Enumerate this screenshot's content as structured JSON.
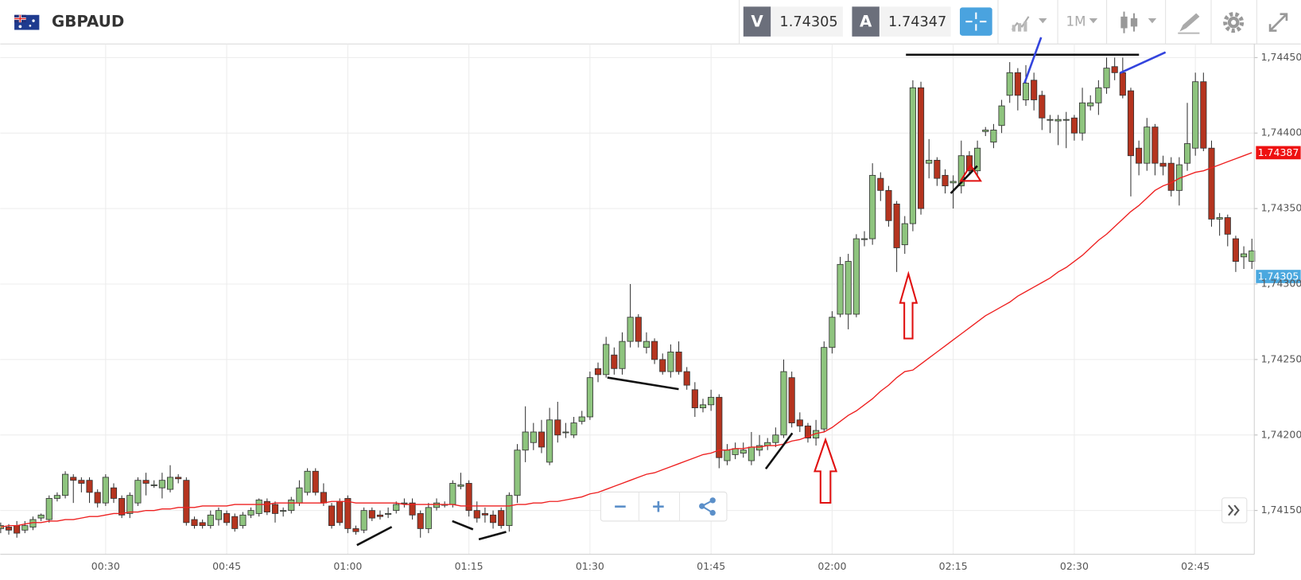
{
  "header": {
    "symbol": "GBPAUD",
    "bid": {
      "label": "V",
      "value": "1.74305"
    },
    "ask": {
      "label": "A",
      "value": "1.74347"
    },
    "timeframe": "1M"
  },
  "chart_data": {
    "type": "candlestick",
    "categories": [
      null,
      null,
      null,
      null,
      null,
      null,
      null,
      null,
      null,
      null,
      null,
      null,
      null,
      "00:30",
      null,
      null,
      null,
      null,
      null,
      null,
      null,
      null,
      null,
      null,
      null,
      null,
      null,
      null,
      "00:45",
      null,
      null,
      null,
      null,
      null,
      null,
      null,
      null,
      null,
      null,
      null,
      null,
      null,
      null,
      "01:00",
      null,
      null,
      null,
      null,
      null,
      null,
      null,
      null,
      null,
      null,
      null,
      null,
      null,
      null,
      "01:15",
      null,
      null,
      null,
      null,
      null,
      null,
      null,
      null,
      null,
      null,
      null,
      null,
      null,
      null,
      "01:30",
      null,
      null,
      null,
      null,
      null,
      null,
      null,
      null,
      null,
      null,
      null,
      null,
      null,
      null,
      "01:45",
      null,
      null,
      null,
      null,
      null,
      null,
      null,
      null,
      null,
      null,
      null,
      null,
      null,
      null,
      "02:00",
      null,
      null,
      null,
      null,
      null,
      null,
      null,
      null,
      null,
      null,
      null,
      null,
      null,
      null,
      "02:15",
      null,
      null,
      null,
      null,
      null,
      null,
      null,
      null,
      null,
      null,
      null,
      null,
      null,
      null,
      "02:30",
      null,
      null,
      null,
      null,
      null,
      null,
      null,
      null,
      null,
      null,
      null,
      null,
      null,
      null,
      "02:45",
      null,
      null,
      null,
      null,
      null,
      null,
      null
    ],
    "open": [
      1.74138,
      1.74139,
      1.7414,
      1.74137,
      1.74139,
      1.74145,
      1.74144,
      1.74158,
      1.7416,
      1.74172,
      1.7417,
      1.7417,
      1.74162,
      1.74155,
      1.74165,
      1.74158,
      1.74148,
      1.74155,
      1.7417,
      1.74167,
      1.74165,
      1.74164,
      1.74172,
      1.7417,
      1.74144,
      1.74142,
      1.7414,
      1.74144,
      1.74148,
      1.74146,
      1.7414,
      1.74147,
      1.74148,
      1.74156,
      1.74154,
      1.7415,
      1.7415,
      1.74155,
      1.74162,
      1.74176,
      1.74162,
      1.74153,
      1.74156,
      1.74158,
      1.74138,
      1.74137,
      1.7415,
      1.74147,
      1.74148,
      1.7415,
      1.74155,
      1.74155,
      1.74148,
      1.74138,
      1.74152,
      1.74154,
      1.74154,
      1.74166,
      1.74168,
      1.7415,
      1.74148,
      1.74147,
      1.7415,
      1.7414,
      1.7416,
      1.7419,
      1.74195,
      1.74202,
      1.74182,
      1.7421,
      1.74202,
      1.742,
      1.74209,
      1.74212,
      1.74244,
      1.7424,
      1.74253,
      1.74244,
      1.74262,
      1.74278,
      1.74258,
      1.74262,
      1.7425,
      1.74242,
      1.74255,
      1.74242,
      1.7423,
      1.74218,
      1.7422,
      1.74225,
      1.74183,
      1.74187,
      1.74188,
      1.74183,
      1.7419,
      1.74193,
      1.74195,
      1.742,
      1.74238,
      1.7421,
      1.74206,
      1.74198,
      1.74204,
      1.74258,
      1.7428,
      1.7428,
      1.7428,
      1.7433,
      1.7433,
      1.7437,
      1.74362,
      1.74353,
      1.74326,
      1.7434,
      1.7443,
      1.7438,
      1.74382,
      1.74372,
      1.74367,
      1.74365,
      1.74385,
      1.74375,
      1.74401,
      1.74394,
      1.74405,
      1.74425,
      1.7444,
      1.74422,
      1.74435,
      1.74425,
      1.74409,
      1.74408,
      1.74409,
      1.7441,
      1.744,
      1.74418,
      1.7442,
      1.7443,
      1.74444,
      1.7444,
      1.74428,
      1.7439,
      1.7438,
      1.74404,
      1.7438,
      1.7438,
      1.74362,
      1.7438,
      1.7439,
      1.74434,
      1.7439,
      1.74343,
      1.74344,
      1.7433,
      1.74318,
      1.74315
    ],
    "high": [
      1.74142,
      1.74141,
      1.74143,
      1.74143,
      1.74146,
      1.74148,
      1.7416,
      1.74162,
      1.74176,
      1.74174,
      1.74172,
      1.74172,
      1.74164,
      1.74174,
      1.74168,
      1.7416,
      1.74162,
      1.74172,
      1.74175,
      1.7417,
      1.74175,
      1.7418,
      1.74174,
      1.74172,
      1.74146,
      1.74144,
      1.7415,
      1.74152,
      1.7415,
      1.74148,
      1.74149,
      1.74152,
      1.74158,
      1.74158,
      1.74156,
      1.74152,
      1.74159,
      1.7417,
      1.74178,
      1.74178,
      1.74168,
      1.74155,
      1.74158,
      1.7416,
      1.7414,
      1.74152,
      1.74152,
      1.7415,
      1.74152,
      1.74156,
      1.74158,
      1.74158,
      1.7415,
      1.74155,
      1.74158,
      1.74156,
      1.7417,
      1.74175,
      1.7417,
      1.74156,
      1.74152,
      1.7415,
      1.74152,
      1.74162,
      1.74194,
      1.74219,
      1.74208,
      1.7421,
      1.74218,
      1.74222,
      1.74208,
      1.74212,
      1.74216,
      1.74242,
      1.74248,
      1.74265,
      1.74258,
      1.74268,
      1.743,
      1.7428,
      1.74268,
      1.74264,
      1.74254,
      1.7426,
      1.74262,
      1.74245,
      1.74235,
      1.74224,
      1.7423,
      1.74227,
      1.74194,
      1.74195,
      1.74195,
      1.74202,
      1.742,
      1.74198,
      1.74205,
      1.7425,
      1.74242,
      1.74215,
      1.74208,
      1.7421,
      1.74262,
      1.74282,
      1.74318,
      1.7432,
      1.74333,
      1.74335,
      1.7438,
      1.74374,
      1.74365,
      1.74355,
      1.74345,
      1.74435,
      1.74434,
      1.74396,
      1.74384,
      1.74376,
      1.74372,
      1.74395,
      1.74388,
      1.74395,
      1.74404,
      1.74406,
      1.74422,
      1.74447,
      1.74443,
      1.74445,
      1.7444,
      1.74428,
      1.74412,
      1.74412,
      1.74414,
      1.74412,
      1.7443,
      1.74425,
      1.74435,
      1.7445,
      1.7445,
      1.7445,
      1.7443,
      1.74395,
      1.7441,
      1.74406,
      1.74385,
      1.74384,
      1.74384,
      1.7442,
      1.7444,
      1.7444,
      1.74395,
      1.74347,
      1.74346,
      1.74332,
      1.74325,
      1.7433
    ],
    "low": [
      1.74135,
      1.74134,
      1.74132,
      1.74135,
      1.74137,
      1.74143,
      1.74142,
      1.74156,
      1.74158,
      1.74155,
      1.74162,
      1.74155,
      1.74152,
      1.74153,
      1.74155,
      1.74145,
      1.74145,
      1.74153,
      1.7416,
      1.74165,
      1.74158,
      1.74162,
      1.74168,
      1.7414,
      1.74138,
      1.74138,
      1.74138,
      1.7414,
      1.7414,
      1.74136,
      1.74138,
      1.74145,
      1.74146,
      1.74147,
      1.74142,
      1.74146,
      1.74148,
      1.74153,
      1.7416,
      1.7416,
      1.74153,
      1.74138,
      1.7414,
      1.74135,
      1.74134,
      1.74135,
      1.74143,
      1.74144,
      1.74145,
      1.74148,
      1.74152,
      1.74144,
      1.74132,
      1.74135,
      1.7415,
      1.74152,
      1.74152,
      1.74164,
      1.74146,
      1.74142,
      1.74142,
      1.74138,
      1.74138,
      1.74136,
      1.74155,
      1.74182,
      1.7419,
      1.74188,
      1.7418,
      1.74195,
      1.74198,
      1.74198,
      1.74207,
      1.7421,
      1.74235,
      1.74238,
      1.7424,
      1.7424,
      1.74258,
      1.74258,
      1.74254,
      1.74247,
      1.7424,
      1.74238,
      1.7424,
      1.7423,
      1.74212,
      1.74215,
      1.74216,
      1.74178,
      1.7418,
      1.74184,
      1.74185,
      1.7418,
      1.74186,
      1.7419,
      1.74192,
      1.74198,
      1.74205,
      1.74202,
      1.74195,
      1.74193,
      1.74202,
      1.74254,
      1.74278,
      1.7427,
      1.74278,
      1.74325,
      1.74326,
      1.74355,
      1.74338,
      1.74308,
      1.7432,
      1.74335,
      1.74346,
      1.7437,
      1.74365,
      1.7436,
      1.7435,
      1.7436,
      1.74372,
      1.74372,
      1.74398,
      1.7439,
      1.744,
      1.7442,
      1.74415,
      1.74418,
      1.74415,
      1.74402,
      1.744,
      1.74392,
      1.7439,
      1.74395,
      1.74395,
      1.74415,
      1.74412,
      1.74426,
      1.74435,
      1.74423,
      1.74358,
      1.74372,
      1.74375,
      1.74372,
      1.74372,
      1.74358,
      1.74352,
      1.74375,
      1.74385,
      1.74388,
      1.74338,
      1.74332,
      1.74325,
      1.74308,
      1.7431,
      1.7431
    ],
    "close": [
      1.7414,
      1.74137,
      1.74135,
      1.7414,
      1.74144,
      1.74147,
      1.74158,
      1.7416,
      1.74174,
      1.7417,
      1.74168,
      1.74162,
      1.74155,
      1.74172,
      1.74158,
      1.74147,
      1.7416,
      1.7417,
      1.74168,
      1.74167,
      1.7417,
      1.74172,
      1.74171,
      1.74142,
      1.7414,
      1.7414,
      1.74147,
      1.7415,
      1.74142,
      1.74138,
      1.74147,
      1.7415,
      1.74157,
      1.74149,
      1.74148,
      1.7415,
      1.74157,
      1.74165,
      1.74176,
      1.74162,
      1.74155,
      1.7414,
      1.74142,
      1.74138,
      1.74136,
      1.7415,
      1.74145,
      1.74146,
      1.74148,
      1.74154,
      1.74155,
      1.74147,
      1.74138,
      1.74152,
      1.74155,
      1.74154,
      1.74168,
      1.74167,
      1.7415,
      1.74145,
      1.74147,
      1.74142,
      1.7414,
      1.7416,
      1.7419,
      1.74202,
      1.74202,
      1.74192,
      1.7421,
      1.742,
      1.74202,
      1.74208,
      1.74212,
      1.74238,
      1.7424,
      1.7426,
      1.74244,
      1.74262,
      1.74278,
      1.74262,
      1.74262,
      1.7425,
      1.74242,
      1.74255,
      1.74242,
      1.74233,
      1.74218,
      1.7422,
      1.74225,
      1.74185,
      1.7419,
      1.74191,
      1.7419,
      1.74192,
      1.74193,
      1.74195,
      1.742,
      1.74242,
      1.74208,
      1.74206,
      1.74198,
      1.74203,
      1.74258,
      1.74278,
      1.74313,
      1.74315,
      1.7433,
      1.7433,
      1.74372,
      1.74362,
      1.74342,
      1.74324,
      1.7434,
      1.7443,
      1.7435,
      1.74382,
      1.7437,
      1.74365,
      1.74368,
      1.74385,
      1.74375,
      1.7439,
      1.74402,
      1.74402,
      1.74418,
      1.7444,
      1.74425,
      1.74433,
      1.74422,
      1.7441,
      1.74409,
      1.74409,
      1.74409,
      1.744,
      1.7442,
      1.7442,
      1.7443,
      1.74443,
      1.7444,
      1.74425,
      1.74385,
      1.7438,
      1.74404,
      1.7438,
      1.74378,
      1.74362,
      1.74379,
      1.74393,
      1.74434,
      1.7439,
      1.74343,
      1.74344,
      1.74333,
      1.74315,
      1.7432,
      1.74322
    ],
    "up_color": "#8ec47e",
    "down_color": "#b5341f",
    "moving_average": {
      "color": "#ee2020",
      "values": [
        1.74139,
        1.7414,
        1.7414,
        1.74141,
        1.74142,
        1.74142,
        1.74143,
        1.74143,
        1.74144,
        1.74144,
        1.74145,
        1.74146,
        1.74146,
        1.74147,
        1.74148,
        1.74148,
        1.74149,
        1.74149,
        1.7415,
        1.7415,
        1.74151,
        1.74151,
        1.74152,
        1.74152,
        1.74152,
        1.74153,
        1.74153,
        1.74153,
        1.74153,
        1.74154,
        1.74154,
        1.74154,
        1.74154,
        1.74154,
        1.74155,
        1.74155,
        1.74155,
        1.74155,
        1.74155,
        1.74155,
        1.74155,
        1.74156,
        1.74156,
        1.74156,
        1.74155,
        1.74155,
        1.74155,
        1.74155,
        1.74155,
        1.74155,
        1.74154,
        1.74154,
        1.74154,
        1.74154,
        1.74154,
        1.74154,
        1.74154,
        1.74153,
        1.74153,
        1.74153,
        1.74153,
        1.74153,
        1.74153,
        1.74153,
        1.74154,
        1.74154,
        1.74155,
        1.74155,
        1.74156,
        1.74156,
        1.74157,
        1.74158,
        1.74159,
        1.74161,
        1.74162,
        1.74164,
        1.74166,
        1.74168,
        1.7417,
        1.74172,
        1.74174,
        1.74175,
        1.74177,
        1.74179,
        1.74181,
        1.74183,
        1.74185,
        1.74187,
        1.74188,
        1.7419,
        1.7419,
        1.74191,
        1.74191,
        1.74192,
        1.74192,
        1.74193,
        1.74193,
        1.74194,
        1.74196,
        1.74197,
        1.74199,
        1.74201,
        1.74202,
        1.74205,
        1.74209,
        1.74213,
        1.74216,
        1.7422,
        1.74224,
        1.74229,
        1.74233,
        1.74238,
        1.74242,
        1.74243,
        1.74247,
        1.74251,
        1.74255,
        1.74259,
        1.74263,
        1.74267,
        1.74271,
        1.74275,
        1.74279,
        1.74282,
        1.74285,
        1.74288,
        1.74292,
        1.74295,
        1.74298,
        1.74301,
        1.74304,
        1.74308,
        1.74311,
        1.74315,
        1.74319,
        1.74324,
        1.74329,
        1.74333,
        1.74338,
        1.74343,
        1.74348,
        1.74352,
        1.74357,
        1.74362,
        1.74365,
        1.74367,
        1.7437,
        1.74372,
        1.74374,
        1.74375,
        1.74377,
        1.74379,
        1.74381,
        1.74383,
        1.74385,
        1.74387
      ]
    },
    "price_markers": [
      {
        "value": 1.74387,
        "color": "#ee1111"
      },
      {
        "value": 1.74305,
        "color": "#4aa8df"
      }
    ],
    "ylim": [
      1.74121,
      1.74459
    ],
    "yticks": [
      {
        "value": 1.7415,
        "label": "1,74150"
      },
      {
        "value": 1.742,
        "label": "1,74200"
      },
      {
        "value": 1.7425,
        "label": "1,74250"
      },
      {
        "value": 1.743,
        "label": "1,74300"
      },
      {
        "value": 1.7435,
        "label": "1,74350"
      },
      {
        "value": 1.744,
        "label": "1,74400"
      },
      {
        "value": 1.7445,
        "label": "1,74450"
      }
    ],
    "grid": true
  }
}
